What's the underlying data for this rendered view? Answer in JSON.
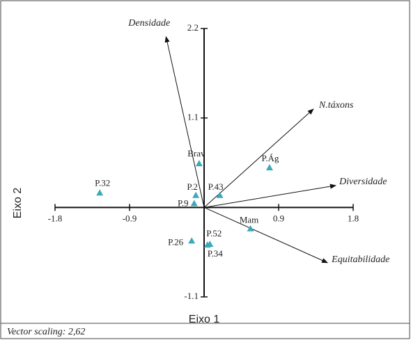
{
  "chart_data": {
    "type": "biplot",
    "x_label": "Eixo 1",
    "y_label": "Eixo 2",
    "footnote": "Vector scaling: 2,62",
    "xlim": [
      -1.8,
      1.8
    ],
    "ylim": [
      -1.1,
      2.2
    ],
    "xticks": [
      -1.8,
      -0.9,
      0.9,
      1.8
    ],
    "yticks": [
      -1.1,
      1.1,
      2.2
    ],
    "points": {
      "color": "#3aa9b9",
      "labels": [
        "P.32",
        "Brav",
        "P.2",
        "P.9",
        "P.43",
        "P.Ág",
        "Mam",
        "P.26",
        "P.52",
        "P.34"
      ],
      "x": [
        -1.26,
        -0.06,
        -0.1,
        -0.12,
        0.19,
        0.79,
        0.56,
        -0.15,
        0.07,
        0.04
      ],
      "y": [
        0.18,
        0.54,
        0.15,
        0.05,
        0.15,
        0.49,
        -0.26,
        -0.41,
        -0.45,
        -0.46
      ]
    },
    "vectors": {
      "labels": [
        "Densidade",
        "N.táxons",
        "Diversidade",
        "Equitabilidade"
      ],
      "x": [
        -0.46,
        1.32,
        1.59,
        1.49
      ],
      "y": [
        2.1,
        1.21,
        0.27,
        -0.68
      ]
    }
  }
}
